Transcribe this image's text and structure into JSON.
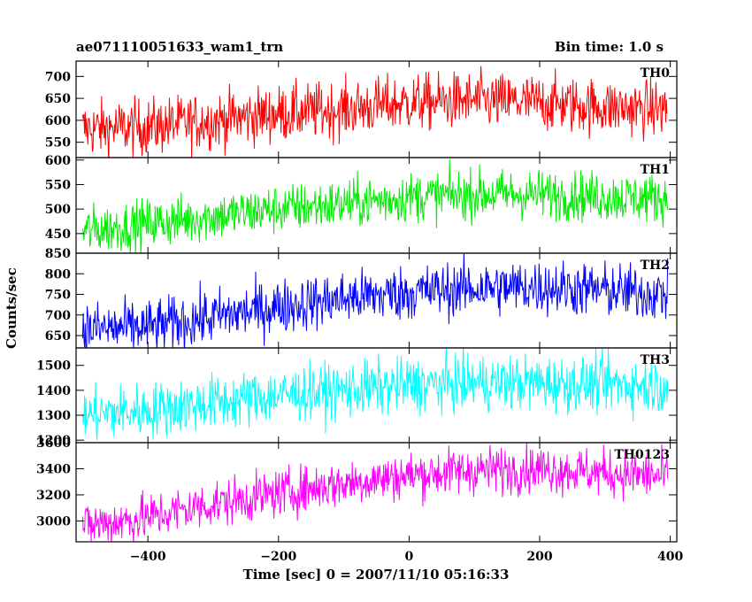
{
  "title": "ae071110051633_wam1_trn",
  "bin_time": "Bin time: 1.0 s",
  "ylabel": "Counts/sec",
  "xlabel": "Time [sec] 0 = 2007/11/10 05:16:33",
  "chart_data": {
    "type": "line",
    "x_range": [
      -510,
      410
    ],
    "x_ticks": [
      -400,
      -200,
      0,
      200,
      400
    ],
    "x_tick_labels": [
      "−400",
      "−200",
      "0",
      "200",
      "400"
    ],
    "x_start": -500,
    "x_end": 396,
    "panels": [
      {
        "name": "TH0",
        "color": "#ff0000",
        "ylim": [
          515,
          735
        ],
        "yticks": [
          550,
          600,
          650,
          700
        ],
        "trend_x": [
          -500,
          -400,
          -300,
          -200,
          -100,
          0,
          100,
          200,
          300,
          396
        ],
        "trend_y": [
          580,
          585,
          600,
          615,
          625,
          640,
          645,
          640,
          630,
          625
        ],
        "noise_amplitude": 32
      },
      {
        "name": "TH1",
        "color": "#00ee00",
        "ylim": [
          410,
          605
        ],
        "yticks": [
          450,
          500,
          550,
          600
        ],
        "trend_x": [
          -500,
          -400,
          -300,
          -200,
          -100,
          0,
          100,
          200,
          300,
          396
        ],
        "trend_y": [
          455,
          470,
          485,
          500,
          510,
          525,
          530,
          530,
          525,
          522
        ],
        "noise_amplitude": 25
      },
      {
        "name": "TH2",
        "color": "#0000ff",
        "ylim": [
          620,
          850
        ],
        "yticks": [
          650,
          700,
          750,
          800,
          850
        ],
        "ytick_labels": [
          "650",
          "700",
          "750",
          "800",
          "850"
        ],
        "trend_x": [
          -500,
          -400,
          -300,
          -200,
          -100,
          0,
          100,
          200,
          300,
          396
        ],
        "trend_y": [
          665,
          670,
          695,
          720,
          740,
          755,
          765,
          768,
          760,
          750
        ],
        "noise_amplitude": 33
      },
      {
        "name": "TH3",
        "color": "#00ffff",
        "ylim": [
          1190,
          1570
        ],
        "yticks": [
          1200,
          1300,
          1400,
          1500
        ],
        "trend_x": [
          -500,
          -400,
          -300,
          -200,
          -100,
          0,
          100,
          200,
          300,
          396
        ],
        "trend_y": [
          1300,
          1320,
          1350,
          1380,
          1400,
          1420,
          1430,
          1430,
          1425,
          1420
        ],
        "noise_amplitude": 55
      },
      {
        "name": "TH0123",
        "color": "#ff00ff",
        "ylim": [
          2840,
          3600
        ],
        "yticks": [
          3000,
          3200,
          3400,
          3600
        ],
        "trend_x": [
          -500,
          -400,
          -300,
          -200,
          -100,
          0,
          100,
          200,
          300,
          396
        ],
        "trend_y": [
          2960,
          3030,
          3130,
          3210,
          3290,
          3350,
          3390,
          3400,
          3370,
          3340
        ],
        "noise_amplitude": 90
      }
    ]
  }
}
